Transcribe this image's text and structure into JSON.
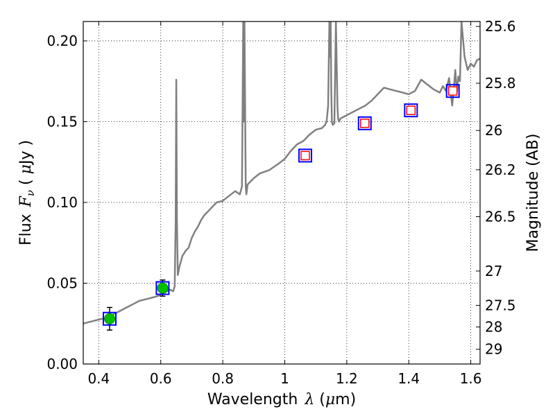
{
  "chart_data": {
    "type": "line",
    "title": "",
    "xlabel": "Wavelength",
    "xlabel_symbol": "λ",
    "xlabel_unit_open": " (",
    "xlabel_unit_mu": "μ",
    "xlabel_unit_rest": "m)",
    "ylabel": "Flux",
    "ylabel_symbol": "F",
    "ylabel_subscript": "ν",
    "ylabel_unit_open": " ( ",
    "ylabel_unit_mu": "μ",
    "ylabel_unit_rest": "Jy )",
    "y2label": "Magnitude (AB)",
    "xlim": [
      0.35,
      1.63
    ],
    "ylim": [
      0.0,
      0.212
    ],
    "x_ticks": [
      0.4,
      0.6,
      0.8,
      1.0,
      1.2,
      1.4,
      1.6
    ],
    "x_tick_labels": [
      "0.4",
      "0.6",
      "0.8",
      "1",
      "1.2",
      "1.4",
      "1.6"
    ],
    "y_ticks": [
      0.0,
      0.05,
      0.1,
      0.15,
      0.2
    ],
    "y_tick_labels": [
      "0.00",
      "0.05",
      "0.10",
      "0.15",
      "0.20"
    ],
    "y2_ticks": [
      25.6,
      25.8,
      26,
      26.2,
      26.5,
      27,
      27.5,
      28,
      29
    ],
    "y2_tick_labels": [
      "25.6",
      "25.8",
      "26",
      "26.2",
      "26.5",
      "27",
      "27.5",
      "28",
      "29"
    ],
    "grid": true,
    "colors": {
      "spectrum": "#808080",
      "filled_marker": "#00c000",
      "box_marker": "#0000ff",
      "inner_marker": "#ff0000"
    },
    "spectrum": {
      "x": [
        0.35,
        0.37,
        0.39,
        0.41,
        0.43,
        0.45,
        0.47,
        0.49,
        0.51,
        0.53,
        0.55,
        0.57,
        0.59,
        0.61,
        0.63,
        0.64,
        0.645,
        0.648,
        0.65,
        0.652,
        0.655,
        0.66,
        0.67,
        0.68,
        0.69,
        0.7,
        0.71,
        0.72,
        0.73,
        0.74,
        0.75,
        0.76,
        0.77,
        0.78,
        0.8,
        0.82,
        0.84,
        0.855,
        0.862,
        0.866,
        0.868,
        0.87,
        0.872,
        0.874,
        0.876,
        0.878,
        0.88,
        0.9,
        0.92,
        0.95,
        0.98,
        1.0,
        1.02,
        1.04,
        1.06,
        1.08,
        1.1,
        1.12,
        1.13,
        1.135,
        1.14,
        1.144,
        1.146,
        1.148,
        1.15,
        1.152,
        1.155,
        1.16,
        1.165,
        1.17,
        1.172,
        1.175,
        1.18,
        1.19,
        1.2,
        1.22,
        1.24,
        1.26,
        1.28,
        1.3,
        1.32,
        1.34,
        1.36,
        1.38,
        1.4,
        1.42,
        1.44,
        1.46,
        1.48,
        1.5,
        1.51,
        1.52,
        1.53,
        1.54,
        1.545,
        1.55,
        1.555,
        1.56,
        1.565,
        1.57,
        1.58,
        1.59,
        1.6,
        1.61,
        1.62,
        1.63
      ],
      "y": [
        0.025,
        0.026,
        0.027,
        0.028,
        0.029,
        0.031,
        0.033,
        0.035,
        0.037,
        0.039,
        0.04,
        0.041,
        0.042,
        0.044,
        0.046,
        0.045,
        0.048,
        0.088,
        0.176,
        0.09,
        0.055,
        0.06,
        0.067,
        0.07,
        0.072,
        0.078,
        0.082,
        0.085,
        0.089,
        0.092,
        0.094,
        0.096,
        0.098,
        0.1,
        0.101,
        0.104,
        0.107,
        0.105,
        0.11,
        0.212,
        0.15,
        0.212,
        0.16,
        0.11,
        0.105,
        0.108,
        0.111,
        0.115,
        0.118,
        0.12,
        0.124,
        0.127,
        0.132,
        0.136,
        0.138,
        0.142,
        0.145,
        0.146,
        0.148,
        0.15,
        0.16,
        0.212,
        0.19,
        0.212,
        0.17,
        0.15,
        0.148,
        0.149,
        0.212,
        0.16,
        0.152,
        0.15,
        0.152,
        0.153,
        0.154,
        0.156,
        0.158,
        0.16,
        0.163,
        0.167,
        0.171,
        0.17,
        0.169,
        0.168,
        0.167,
        0.169,
        0.176,
        0.173,
        0.17,
        0.168,
        0.172,
        0.169,
        0.177,
        0.16,
        0.17,
        0.182,
        0.168,
        0.178,
        0.175,
        0.212,
        0.19,
        0.182,
        0.186,
        0.184,
        0.188,
        0.189
      ]
    },
    "photometry": [
      {
        "x": 0.435,
        "y": 0.028,
        "err": 0.007,
        "marker": "filled_circle",
        "box": true
      },
      {
        "x": 0.606,
        "y": 0.047,
        "err": 0.005,
        "marker": "filled_circle",
        "box": true
      },
      {
        "x": 1.066,
        "y": 0.129,
        "err": 0,
        "marker": "open_square",
        "box": true
      },
      {
        "x": 1.258,
        "y": 0.149,
        "err": 0,
        "marker": "open_square",
        "box": true
      },
      {
        "x": 1.407,
        "y": 0.157,
        "err": 0,
        "marker": "open_square",
        "box": true
      },
      {
        "x": 1.542,
        "y": 0.169,
        "err": 0,
        "marker": "open_square",
        "box": true
      }
    ]
  }
}
